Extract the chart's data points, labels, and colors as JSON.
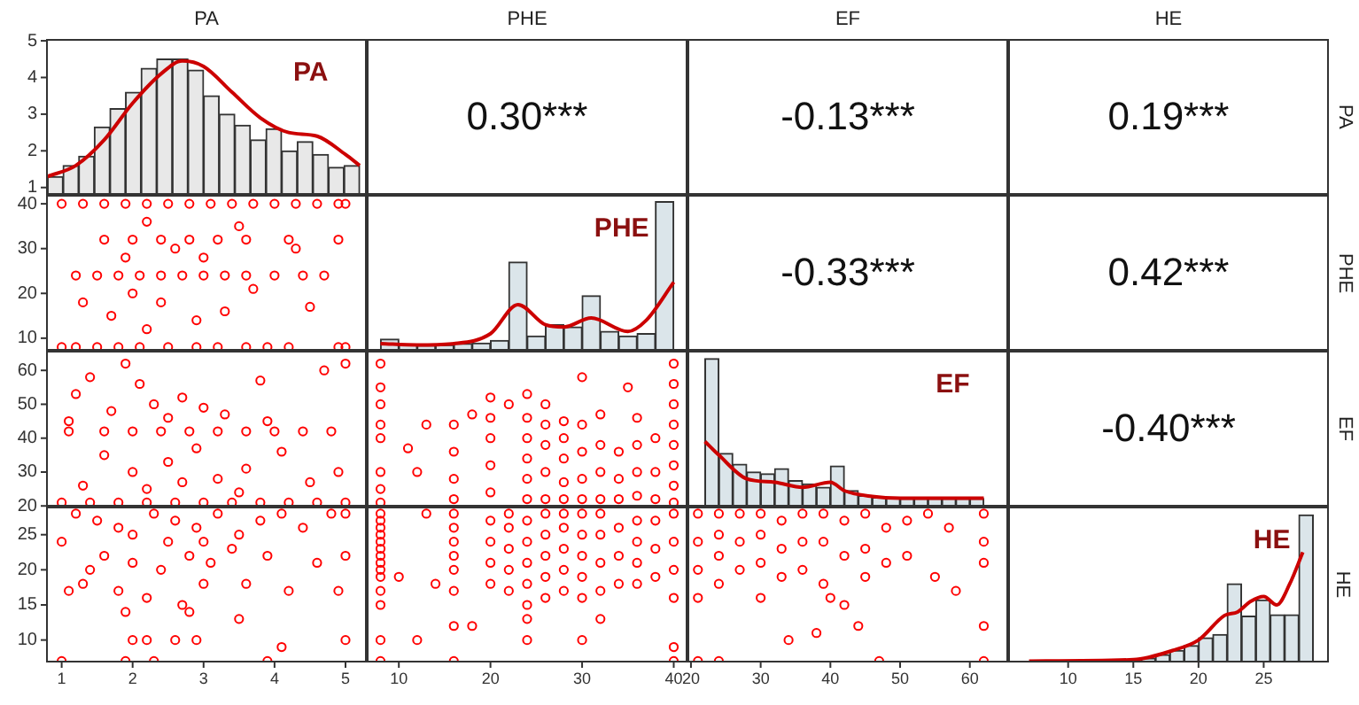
{
  "chart_data": [
    {
      "type": "histogram",
      "title": "PA",
      "xlim": [
        0.78,
        5.3
      ],
      "ylim": [
        0.8,
        5.05
      ],
      "yticks": [
        1,
        2,
        3,
        4,
        5
      ],
      "tick_labels": "y",
      "annotations": [
        "PA"
      ],
      "series": [
        {
          "type": "histogram",
          "color": "#e8e8e8",
          "bins": [
            0.8,
            1.02,
            1.24,
            1.46,
            1.68,
            1.9,
            2.12,
            2.34,
            2.56,
            2.78,
            3.0,
            3.22,
            3.44,
            3.66,
            3.88,
            4.1,
            4.32,
            4.54,
            4.76,
            4.98,
            5.2
          ],
          "values": [
            1.3,
            1.6,
            1.85,
            2.65,
            3.15,
            3.6,
            4.25,
            4.5,
            4.5,
            4.2,
            3.5,
            3.0,
            2.7,
            2.3,
            2.6,
            2.0,
            2.25,
            1.9,
            1.55,
            1.6
          ]
        },
        {
          "type": "line",
          "color": "#cc0000",
          "x": [
            0.8,
            1.2,
            1.6,
            2.0,
            2.4,
            2.7,
            3.0,
            3.4,
            3.8,
            4.2,
            4.6,
            5.0,
            5.2
          ],
          "values": [
            1.3,
            1.6,
            2.3,
            3.3,
            4.1,
            4.45,
            4.3,
            3.6,
            2.9,
            2.5,
            2.4,
            1.9,
            1.6
          ]
        }
      ]
    },
    {
      "type": "other",
      "title": "PHE",
      "annotations": [
        "0.30***"
      ]
    },
    {
      "type": "other",
      "title": "EF",
      "annotations": [
        "-0.13***"
      ]
    },
    {
      "type": "other",
      "title": "HE",
      "y2label": "PA",
      "annotations": [
        "0.19***"
      ]
    },
    {
      "type": "scatter",
      "xlim": [
        0.78,
        5.3
      ],
      "ylim": [
        7.2,
        42
      ],
      "yticks": [
        10,
        20,
        30,
        40
      ],
      "tick_labels": "y",
      "marker": "circle",
      "series": [
        {
          "color": "#ff0000",
          "x": [
            1.0,
            1.3,
            1.6,
            1.9,
            2.2,
            2.5,
            2.8,
            3.1,
            3.4,
            3.7,
            4.0,
            4.3,
            4.6,
            4.9,
            5.0,
            1.6,
            2.0,
            2.4,
            2.8,
            3.2,
            3.6,
            4.2,
            4.9,
            1.2,
            1.5,
            1.8,
            2.1,
            2.4,
            2.7,
            3.0,
            3.3,
            3.6,
            4.0,
            4.4,
            4.7,
            1.0,
            1.2,
            1.5,
            1.8,
            2.1,
            2.5,
            2.9,
            3.2,
            3.6,
            3.9,
            4.2,
            4.9,
            5.0,
            2.2,
            2.6,
            3.0,
            2.0,
            2.4,
            1.7,
            2.9,
            3.3,
            2.2,
            3.7,
            1.3,
            4.5,
            1.9,
            3.5,
            4.3
          ],
          "values": [
            40,
            40,
            40,
            40,
            40,
            40,
            40,
            40,
            40,
            40,
            40,
            40,
            40,
            40,
            40,
            32,
            32,
            32,
            32,
            32,
            32,
            32,
            32,
            24,
            24,
            24,
            24,
            24,
            24,
            24,
            24,
            24,
            24,
            24,
            24,
            8,
            8,
            8,
            8,
            8,
            8,
            8,
            8,
            8,
            8,
            8,
            8,
            8,
            36,
            30,
            28,
            20,
            18,
            15,
            14,
            16,
            12,
            21,
            18,
            17,
            28,
            35,
            30
          ]
        }
      ]
    },
    {
      "type": "histogram",
      "xlim": [
        6.5,
        41.5
      ],
      "ylim": [
        7.2,
        42
      ],
      "tick_labels": false,
      "annotations": [
        "PHE"
      ],
      "series": [
        {
          "type": "histogram",
          "color": "#dbe5ea",
          "bins": [
            8,
            10,
            12,
            14,
            16,
            18,
            20,
            22,
            24,
            26,
            28,
            30,
            32,
            34,
            36,
            38,
            40
          ],
          "values": [
            9.8,
            8.6,
            8.4,
            8.5,
            8.8,
            8.9,
            9.5,
            27,
            10.5,
            13,
            12.5,
            19.5,
            11.5,
            10.5,
            11,
            40.5
          ]
        },
        {
          "type": "line",
          "color": "#cc0000",
          "x": [
            8,
            12,
            16,
            20,
            23,
            26,
            28,
            31,
            35,
            37,
            40
          ],
          "values": [
            8.8,
            8.5,
            8.8,
            11,
            17.5,
            13,
            12.5,
            14.5,
            11.5,
            14,
            22.5
          ]
        }
      ]
    },
    {
      "type": "other",
      "annotations": [
        "-0.33***"
      ]
    },
    {
      "type": "other",
      "y2label": "PHE",
      "annotations": [
        "0.42***"
      ]
    },
    {
      "type": "scatter",
      "xlim": [
        0.78,
        5.3
      ],
      "ylim": [
        19.8,
        65.8
      ],
      "yticks": [
        20,
        30,
        40,
        50,
        60
      ],
      "tick_labels": "y",
      "marker": "circle",
      "series": [
        {
          "color": "#ff0000",
          "x": [
            1.0,
            1.4,
            1.8,
            2.2,
            2.6,
            3.0,
            3.4,
            3.8,
            4.2,
            4.6,
            5.0,
            1.1,
            1.6,
            2.0,
            2.4,
            2.8,
            3.2,
            3.6,
            4.0,
            4.4,
            4.8,
            1.2,
            1.4,
            1.9,
            2.1,
            1.7,
            2.3,
            2.7,
            3.0,
            3.3,
            3.8,
            4.7,
            5.0,
            1.6,
            2.0,
            2.5,
            2.9,
            3.2,
            3.6,
            4.1,
            4.5,
            1.3,
            2.2,
            2.7,
            3.5,
            4.9,
            1.1,
            3.9,
            2.5
          ],
          "values": [
            21,
            21,
            21,
            21,
            21,
            21,
            21,
            21,
            21,
            21,
            21,
            42,
            42,
            42,
            42,
            42,
            42,
            42,
            42,
            42,
            42,
            53,
            58,
            62,
            56,
            48,
            50,
            52,
            49,
            47,
            57,
            60,
            62,
            35,
            30,
            33,
            37,
            28,
            31,
            36,
            27,
            26,
            25,
            27,
            24,
            30,
            45,
            45,
            46
          ]
        }
      ]
    },
    {
      "type": "scatter",
      "xlim": [
        6.5,
        41.5
      ],
      "ylim": [
        19.8,
        65.8
      ],
      "tick_labels": false,
      "marker": "circle",
      "series": [
        {
          "color": "#ff0000",
          "x": [
            8,
            8,
            8,
            8,
            8,
            8,
            8,
            8,
            16,
            16,
            16,
            16,
            20,
            20,
            20,
            20,
            20,
            24,
            24,
            24,
            24,
            24,
            24,
            26,
            26,
            26,
            26,
            26,
            28,
            28,
            28,
            28,
            28,
            30,
            30,
            30,
            30,
            30,
            32,
            32,
            32,
            32,
            34,
            34,
            34,
            36,
            36,
            36,
            36,
            38,
            38,
            38,
            40,
            40,
            40,
            40,
            40,
            40,
            40,
            40,
            12,
            13,
            18,
            22,
            11,
            35
          ],
          "values": [
            21,
            25,
            30,
            40,
            44,
            50,
            55,
            62,
            22,
            28,
            36,
            44,
            24,
            32,
            40,
            46,
            52,
            22,
            28,
            34,
            40,
            46,
            53,
            22,
            30,
            38,
            44,
            50,
            22,
            27,
            34,
            40,
            45,
            22,
            28,
            36,
            44,
            58,
            22,
            30,
            38,
            47,
            22,
            28,
            36,
            23,
            30,
            38,
            46,
            22,
            30,
            40,
            21,
            26,
            32,
            38,
            44,
            50,
            56,
            62,
            30,
            44,
            47,
            50,
            37,
            55
          ]
        }
      ]
    },
    {
      "type": "histogram",
      "xlim": [
        19.5,
        65.5
      ],
      "ylim": [
        19.8,
        65.8
      ],
      "tick_labels": false,
      "annotations": [
        "EF"
      ],
      "series": [
        {
          "type": "histogram",
          "color": "#dbe5ea",
          "bins": [
            22,
            24,
            26,
            28,
            30,
            32,
            34,
            36,
            38,
            40,
            42,
            44,
            46,
            48,
            50,
            52,
            54,
            56,
            58,
            60,
            62
          ],
          "values": [
            63.5,
            35.5,
            32.3,
            30,
            29.5,
            31,
            27.5,
            26.5,
            25.5,
            31.8,
            24.5,
            23,
            22.5,
            22.3,
            22.2,
            22.2,
            22.2,
            22.2,
            22.2,
            22.2
          ]
        },
        {
          "type": "line",
          "color": "#cc0000",
          "x": [
            22,
            24,
            28,
            32,
            36,
            40,
            42,
            46,
            50,
            62
          ],
          "values": [
            39,
            35,
            28,
            27,
            25.5,
            27,
            24.5,
            22.8,
            22.3,
            22.3
          ]
        }
      ]
    },
    {
      "type": "other",
      "y2label": "EF",
      "annotations": [
        "-0.40***"
      ]
    },
    {
      "type": "scatter",
      "xlim": [
        0.78,
        5.3
      ],
      "ylim": [
        6.8,
        29
      ],
      "xticks": [
        1,
        2,
        3,
        4,
        5
      ],
      "yticks": [
        10,
        15,
        20,
        25
      ],
      "marker": "circle",
      "series": [
        {
          "color": "#ff0000",
          "x": [
            1.0,
            1.2,
            1.5,
            1.8,
            2.0,
            2.3,
            2.6,
            2.9,
            3.2,
            3.5,
            3.8,
            4.1,
            4.4,
            4.8,
            5.0,
            1.6,
            2.0,
            2.4,
            2.8,
            3.1,
            3.4,
            3.9,
            4.6,
            5.0,
            1.3,
            1.8,
            2.2,
            2.7,
            3.0,
            3.6,
            4.2,
            4.9,
            1.1,
            1.9,
            2.8,
            3.5,
            2.0,
            2.2,
            2.6,
            2.9,
            4.1,
            5.0,
            1.0,
            1.9,
            2.3,
            3.9,
            2.5,
            3.0,
            1.4
          ],
          "values": [
            24,
            28,
            27,
            26,
            25,
            28,
            27,
            26,
            28,
            25,
            27,
            28,
            26,
            28,
            28,
            22,
            21,
            20,
            22,
            21,
            23,
            22,
            21,
            22,
            18,
            17,
            16,
            15,
            18,
            18,
            17,
            17,
            17,
            14,
            14,
            13,
            10,
            10,
            10,
            10,
            9,
            10,
            7,
            7,
            7,
            7,
            24,
            24,
            20
          ]
        }
      ]
    },
    {
      "type": "scatter",
      "xlim": [
        6.5,
        41.5
      ],
      "ylim": [
        6.8,
        29
      ],
      "xticks": [
        10,
        20,
        30,
        40
      ],
      "tick_labels": "x",
      "marker": "circle",
      "series": [
        {
          "color": "#ff0000",
          "x": [
            8,
            8,
            8,
            8,
            8,
            8,
            8,
            8,
            8,
            8,
            8,
            8,
            8,
            8,
            16,
            16,
            16,
            16,
            16,
            16,
            16,
            16,
            20,
            20,
            20,
            20,
            22,
            22,
            22,
            22,
            22,
            24,
            24,
            24,
            24,
            24,
            24,
            24,
            26,
            26,
            26,
            26,
            26,
            28,
            28,
            28,
            28,
            28,
            30,
            30,
            30,
            30,
            30,
            30,
            32,
            32,
            32,
            32,
            32,
            34,
            34,
            34,
            36,
            36,
            36,
            36,
            38,
            38,
            38,
            40,
            40,
            40,
            40,
            40,
            40,
            10,
            12,
            14,
            13,
            18
          ],
          "values": [
            7,
            10,
            15,
            17,
            19,
            20,
            21,
            22,
            23,
            24,
            25,
            26,
            27,
            28,
            7,
            12,
            17,
            20,
            22,
            24,
            26,
            28,
            18,
            21,
            24,
            27,
            17,
            20,
            23,
            26,
            28,
            10,
            13,
            15,
            18,
            21,
            24,
            27,
            16,
            19,
            22,
            25,
            28,
            17,
            20,
            23,
            26,
            28,
            10,
            16,
            19,
            22,
            25,
            28,
            13,
            17,
            21,
            25,
            28,
            18,
            22,
            26,
            18,
            21,
            24,
            27,
            19,
            23,
            27,
            7,
            9,
            16,
            20,
            24,
            28,
            19,
            10,
            18,
            28,
            12
          ]
        }
      ]
    },
    {
      "type": "scatter",
      "xlim": [
        19.5,
        65.5
      ],
      "ylim": [
        6.8,
        29
      ],
      "xticks": [
        20,
        30,
        40,
        50,
        60
      ],
      "tick_labels": "x",
      "marker": "circle",
      "series": [
        {
          "color": "#ff0000",
          "x": [
            21,
            21,
            21,
            21,
            21,
            24,
            24,
            24,
            24,
            24,
            27,
            27,
            27,
            30,
            30,
            30,
            30,
            33,
            33,
            33,
            36,
            36,
            36,
            39,
            39,
            39,
            42,
            42,
            42,
            45,
            45,
            45,
            48,
            48,
            51,
            51,
            54,
            57,
            55,
            38,
            44,
            34,
            47,
            62,
            62,
            62,
            62,
            62,
            40,
            58
          ],
          "values": [
            28,
            24,
            20,
            16,
            7,
            28,
            25,
            22,
            18,
            7,
            28,
            24,
            20,
            28,
            25,
            21,
            16,
            27,
            23,
            19,
            28,
            24,
            20,
            28,
            24,
            18,
            27,
            22,
            15,
            28,
            23,
            19,
            26,
            21,
            27,
            22,
            28,
            26,
            19,
            11,
            12,
            10,
            7,
            28,
            24,
            21,
            12,
            7,
            16,
            17
          ]
        }
      ]
    },
    {
      "type": "histogram",
      "xlim": [
        5.4,
        30
      ],
      "ylim": [
        6.8,
        29
      ],
      "xticks": [
        10,
        15,
        20,
        25
      ],
      "tick_labels": "x",
      "y2label": "HE",
      "annotations": [
        "HE"
      ],
      "series": [
        {
          "type": "histogram",
          "color": "#dbe5ea",
          "bins": [
            15.6,
            16.7,
            17.8,
            18.9,
            20.0,
            21.1,
            22.2,
            23.3,
            24.4,
            25.5,
            26.6,
            27.7,
            28.8
          ],
          "values": [
            7.4,
            7.9,
            8.5,
            9.2,
            10.3,
            10.8,
            18,
            13.4,
            15.7,
            13.6,
            13.6,
            27.8
          ]
        },
        {
          "type": "line",
          "color": "#cc0000",
          "x": [
            7,
            15,
            18,
            20,
            22,
            23,
            24,
            25,
            26,
            27,
            28
          ],
          "values": [
            7,
            7.2,
            8.5,
            10,
            13.5,
            14,
            15.5,
            16.2,
            15,
            18,
            22.5
          ]
        }
      ]
    }
  ]
}
